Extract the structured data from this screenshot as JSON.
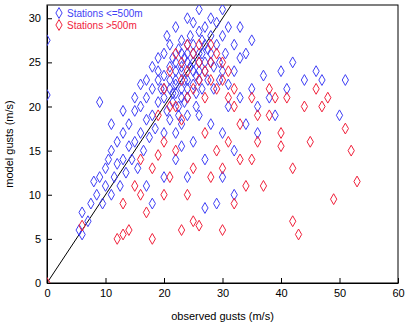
{
  "chart_data": {
    "type": "scatter",
    "x_label": "observed gusts (m/s)",
    "y_label": "model gusts (m/s)",
    "xlim": [
      0,
      60
    ],
    "xticks": [
      0,
      10,
      20,
      30,
      40,
      50,
      60
    ],
    "ylim": [
      0,
      31.5
    ],
    "yticks": [
      0,
      5,
      10,
      15,
      20,
      25,
      30
    ],
    "legend": "upper left",
    "marker": "diamond",
    "series": [
      {
        "name": "Stations <=500m",
        "color": "#3f3ff5",
        "x": [
          0,
          0,
          5.5,
          6,
          7,
          7.5,
          8,
          8.5,
          9,
          9.5,
          10,
          10,
          10.5,
          11,
          11,
          11.5,
          12,
          12,
          12.5,
          13,
          13,
          13.5,
          14,
          14,
          14.5,
          15,
          15,
          15.5,
          16,
          16,
          16.5,
          17,
          17,
          17.5,
          18,
          18,
          18.5,
          19,
          19,
          9,
          11,
          13,
          15,
          6,
          19,
          19.5,
          20,
          20,
          20,
          20.5,
          21,
          21,
          21,
          21.5,
          22,
          22,
          22,
          22.5,
          22.5,
          23,
          23,
          23,
          23.5,
          23.5,
          24,
          24,
          24,
          24.5,
          24.5,
          25,
          25,
          25,
          25.5,
          25.5,
          26,
          26,
          26,
          26.5,
          27,
          27,
          27,
          27.5,
          28,
          28,
          28,
          28.5,
          29,
          29,
          29.5,
          30,
          30,
          30.5,
          31,
          20,
          21,
          22,
          23,
          24,
          19,
          18,
          17,
          16,
          20.5,
          22,
          24,
          26,
          25,
          23.5,
          21.5,
          26.5,
          27.5,
          28.5,
          29.5,
          30,
          31,
          32,
          32,
          33,
          33,
          34,
          35,
          25,
          27,
          28,
          30,
          30,
          31,
          32,
          33,
          34,
          35,
          36,
          37,
          38,
          40,
          41,
          42,
          44,
          46,
          47,
          50,
          51,
          29,
          27,
          24,
          22,
          26,
          36,
          39,
          18,
          17,
          20,
          23,
          32,
          22,
          23,
          24,
          25,
          26,
          24,
          23,
          22,
          25,
          26,
          21,
          20,
          27,
          28,
          24,
          23,
          25.5,
          22.5,
          26.5,
          21.5
        ],
        "values": [
          27.5,
          21.3,
          6,
          5.5,
          7,
          9,
          11.5,
          10,
          12,
          9,
          11,
          13,
          14,
          10,
          15,
          12,
          13.5,
          16,
          11,
          14,
          17,
          12.5,
          15.5,
          18,
          14,
          16,
          19.5,
          13,
          17,
          20,
          15,
          18.5,
          21,
          16.5,
          19,
          22,
          17.5,
          20.5,
          23,
          20.5,
          18,
          19.5,
          21,
          8,
          24,
          22,
          21,
          23.5,
          26,
          19.5,
          22,
          24.5,
          27,
          20.5,
          23,
          25,
          21.5,
          26.5,
          19,
          22,
          24,
          27.5,
          20.5,
          25.5,
          23,
          26,
          21,
          28,
          24.5,
          22.5,
          25,
          27,
          20,
          23.5,
          26,
          24,
          28.5,
          22,
          25,
          27,
          29,
          23,
          26,
          28,
          30,
          24.5,
          27,
          29.5,
          25,
          28,
          31,
          26,
          29,
          17,
          18.5,
          17,
          18,
          19,
          25.5,
          24.5,
          23,
          22.5,
          28,
          29,
          30,
          31,
          29.5,
          23,
          25.5,
          27.5,
          26.5,
          22,
          23,
          24,
          22.5,
          24,
          27,
          25.5,
          29,
          26,
          27.5,
          16,
          14,
          18,
          17,
          12,
          20,
          15,
          21,
          18,
          22,
          20,
          23.5,
          21,
          24,
          22,
          25,
          23,
          24,
          23,
          19,
          23,
          9,
          8.5,
          12,
          14,
          19,
          17,
          19,
          9,
          11,
          12,
          15.5,
          10,
          24,
          26,
          22,
          24,
          25,
          25,
          21,
          22.5,
          26,
          23,
          23,
          22,
          24,
          25,
          27,
          24.5,
          21.5,
          20,
          26,
          21.5
        ]
      },
      {
        "name": "Stations >500m",
        "color": "#f0223c",
        "x": [
          0,
          6,
          12,
          13,
          14,
          13,
          15,
          16,
          17,
          18,
          18,
          19,
          20,
          21,
          22,
          23,
          24,
          25,
          25,
          26,
          27,
          28,
          29,
          30,
          30,
          32,
          33,
          33,
          34,
          35,
          35,
          36,
          37,
          38,
          39,
          40,
          40,
          41,
          42,
          42,
          43,
          44,
          45,
          46,
          47,
          48,
          49,
          51,
          52,
          53,
          32,
          31,
          36,
          38,
          20,
          21,
          22,
          22,
          23,
          23,
          24,
          24,
          25,
          25,
          26,
          26,
          27,
          27,
          28,
          28,
          29,
          29,
          30,
          30,
          31,
          31,
          32,
          24,
          26,
          28,
          19,
          21,
          23,
          20,
          16
        ],
        "values": [
          0,
          6.5,
          5,
          5.5,
          6,
          9,
          11,
          10,
          8,
          13,
          5,
          14.5,
          16,
          12,
          15,
          6,
          10,
          7,
          13,
          6.5,
          17,
          12,
          15,
          13,
          6,
          9,
          14,
          18,
          11,
          14,
          21,
          16,
          11,
          19,
          21,
          17,
          15.5,
          21,
          13,
          7,
          5.5,
          20,
          16,
          22,
          20,
          21,
          9.5,
          17.5,
          15,
          11.5,
          20,
          16,
          19,
          22,
          22,
          24,
          20,
          26,
          23,
          25,
          21,
          24,
          22,
          26,
          23,
          25,
          21,
          24,
          23,
          25,
          22,
          26,
          23,
          25,
          24,
          21,
          22,
          27,
          27,
          27,
          19,
          20,
          18.5,
          10,
          14
        ]
      }
    ],
    "diagonal": {
      "x": [
        0,
        32
      ],
      "values": [
        0,
        32
      ],
      "color": "#000000"
    }
  }
}
